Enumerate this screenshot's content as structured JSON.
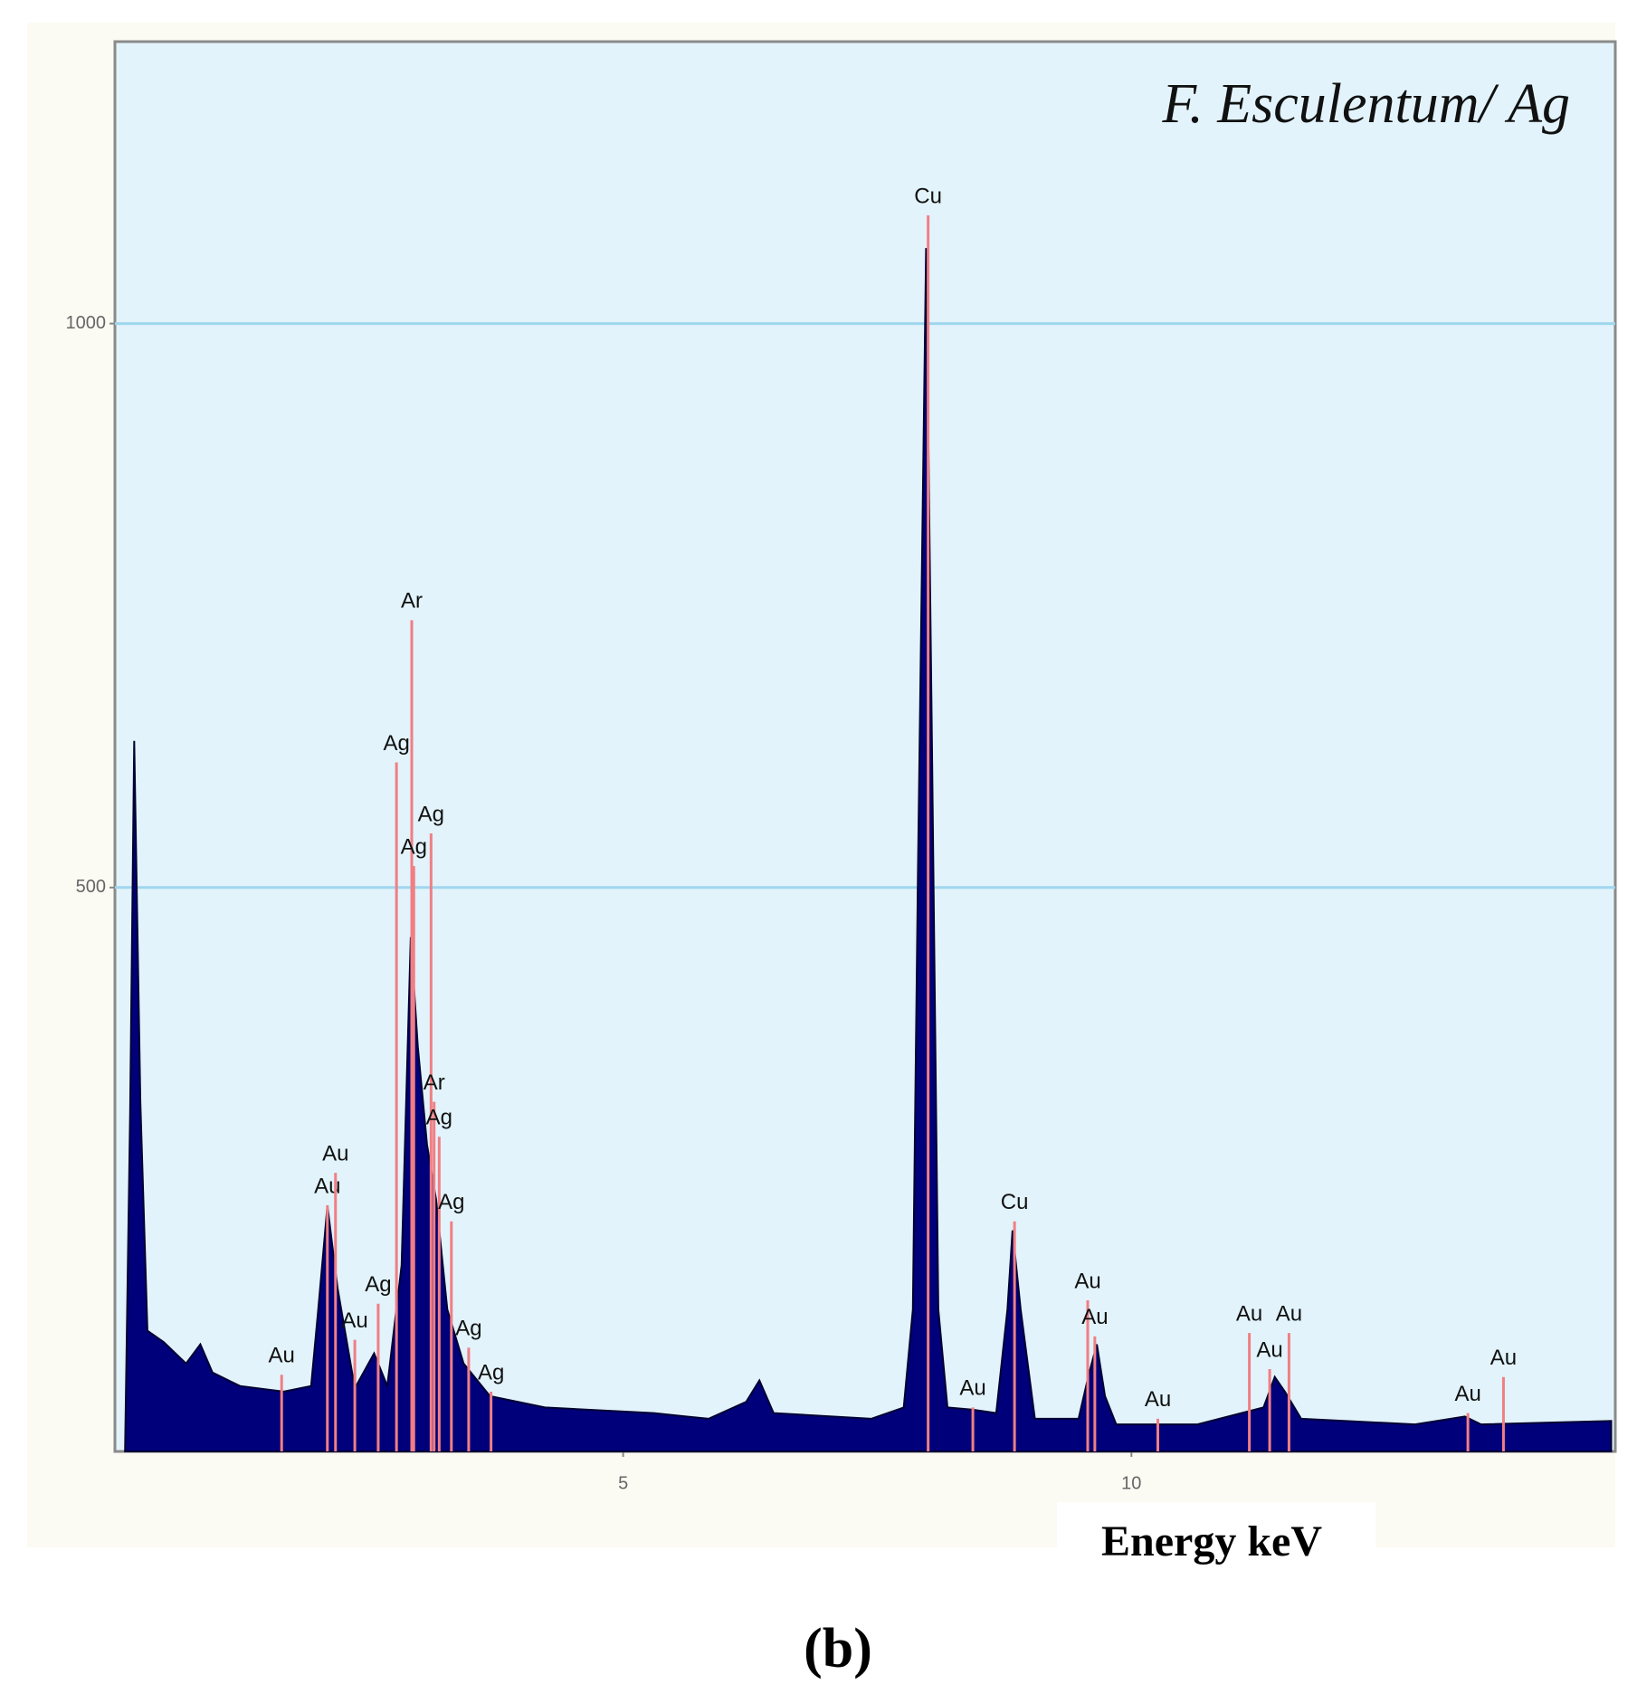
{
  "caption": "(b)",
  "chart_data": {
    "type": "area",
    "title": "F. Esculentum/ Ag",
    "xlabel": "Energy keV",
    "x": [
      0.1,
      0.15,
      0.19,
      0.25,
      0.32,
      0.48,
      0.7,
      0.84,
      0.96,
      1.23,
      1.66,
      1.93,
      2.0,
      2.09,
      2.19,
      2.36,
      2.55,
      2.68,
      2.82,
      2.91,
      2.98,
      3.07,
      3.16,
      3.27,
      3.43,
      3.69,
      4.23,
      5.3,
      5.84,
      6.21,
      6.34,
      6.48,
      7.44,
      7.76,
      7.85,
      7.9,
      7.98,
      8.04,
      8.1,
      8.19,
      8.44,
      8.67,
      8.78,
      8.83,
      8.91,
      9.05,
      9.48,
      9.58,
      9.66,
      9.74,
      9.85,
      10.65,
      11.3,
      11.41,
      11.51,
      11.67,
      12.79,
      13.28,
      13.44,
      14.72
    ],
    "values": [
      0,
      300,
      630,
      310,
      107,
      97,
      78,
      95,
      70,
      58,
      53,
      58,
      126,
      218,
      145,
      56,
      87,
      58,
      165,
      456,
      359,
      272,
      223,
      126,
      78,
      49,
      39,
      34,
      29,
      44,
      63,
      34,
      29,
      39,
      126,
      514,
      1067,
      611,
      126,
      39,
      37,
      34,
      126,
      196,
      126,
      29,
      29,
      68,
      95,
      49,
      24,
      24,
      39,
      66,
      53,
      29,
      24,
      31,
      24,
      27
    ],
    "color": "#00007a",
    "annotations": [
      {
        "label": "Au",
        "x": 1.64,
        "y": 68
      },
      {
        "label": "Au",
        "x": 2.09,
        "y": 218
      },
      {
        "label": "Au",
        "x": 2.17,
        "y": 247
      },
      {
        "label": "Au",
        "x": 2.36,
        "y": 99
      },
      {
        "label": "Ag",
        "x": 2.59,
        "y": 131
      },
      {
        "label": "Ag",
        "x": 2.77,
        "y": 611
      },
      {
        "label": "Ar",
        "x": 2.92,
        "y": 737
      },
      {
        "label": "Ag",
        "x": 2.94,
        "y": 519
      },
      {
        "label": "Ag",
        "x": 3.11,
        "y": 548
      },
      {
        "label": "Ar",
        "x": 3.14,
        "y": 310
      },
      {
        "label": "Ag",
        "x": 3.19,
        "y": 279
      },
      {
        "label": "Ag",
        "x": 3.31,
        "y": 204
      },
      {
        "label": "Ag",
        "x": 3.48,
        "y": 92
      },
      {
        "label": "Ag",
        "x": 3.7,
        "y": 53
      },
      {
        "label": "Cu",
        "x": 8.0,
        "y": 1096
      },
      {
        "label": "Au",
        "x": 8.44,
        "y": 39
      },
      {
        "label": "Cu",
        "x": 8.85,
        "y": 204
      },
      {
        "label": "Au",
        "x": 9.57,
        "y": 134
      },
      {
        "label": "Au",
        "x": 9.64,
        "y": 102
      },
      {
        "label": "Au",
        "x": 10.26,
        "y": 29
      },
      {
        "label": "Au",
        "x": 11.16,
        "y": 105
      },
      {
        "label": "Au",
        "x": 11.36,
        "y": 73
      },
      {
        "label": "Au",
        "x": 11.55,
        "y": 105
      },
      {
        "label": "Au",
        "x": 13.31,
        "y": 34
      },
      {
        "label": "Au",
        "x": 13.66,
        "y": 66
      }
    ],
    "annotation_color": "#f07f84",
    "xlim": [
      0,
      14.76
    ],
    "ylim": [
      0,
      1250
    ],
    "xticks": [
      5,
      10
    ],
    "yticks": [
      500,
      1000
    ],
    "grid": true
  }
}
